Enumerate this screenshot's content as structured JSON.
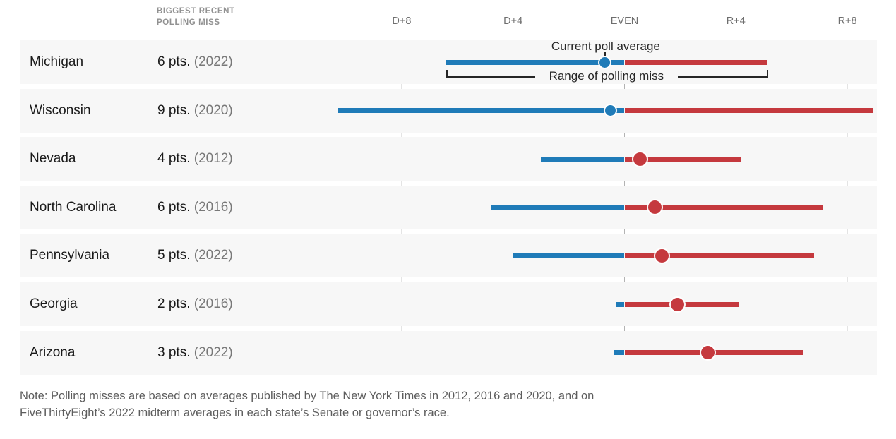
{
  "header": {
    "column_label": "BIGGEST RECENT\nPOLLING MISS"
  },
  "annotations": {
    "current_poll_average": "Current poll average",
    "range_of_polling_miss": "Range of polling miss"
  },
  "note": {
    "lines": [
      "Note: Polling misses are based on averages published by The New York Times in 2012, 2016 and 2020, and on",
      "FiveThirtyEight’s 2022 midterm averages in each state’s Senate or governor’s race."
    ]
  },
  "colors": {
    "dem": "#1f7bb8",
    "rep": "#c5393e",
    "band": "#f7f7f7",
    "gridline": "#e4e4e4",
    "even_line": "#b3b3b3",
    "text_dark": "#1a1a1a",
    "text_gray": "#787878",
    "axis_label": "#6e6e6e",
    "header_label": "#919191",
    "note_text": "#5d5d5d",
    "annotation_text": "#262626"
  },
  "chart_data": {
    "type": "scatter",
    "variant": "dot-with-range",
    "units": "margin in points; negative = Democratic lead, positive = Republican lead",
    "x_axis": {
      "range": [
        -10.5,
        9.5
      ],
      "ticks": [
        {
          "value": -8,
          "label": "D+8"
        },
        {
          "value": -4,
          "label": "D+4"
        },
        {
          "value": 0,
          "label": "EVEN"
        },
        {
          "value": 4,
          "label": "R+4"
        },
        {
          "value": 8,
          "label": "R+8"
        }
      ]
    },
    "legend_position": "annotations on first row",
    "grid": true,
    "rows": [
      {
        "state": "Michigan",
        "miss": "6 pts.",
        "year": "(2022)",
        "poll_average": -0.7,
        "range_lo": -6.4,
        "range_hi": 5.1
      },
      {
        "state": "Wisconsin",
        "miss": "9 pts.",
        "year": "(2020)",
        "poll_average": -0.5,
        "range_lo": -10.3,
        "range_hi": 8.9
      },
      {
        "state": "Nevada",
        "miss": "4 pts.",
        "year": "(2012)",
        "poll_average": 0.55,
        "range_lo": -3.0,
        "range_hi": 4.2
      },
      {
        "state": "North Carolina",
        "miss": "6 pts.",
        "year": "(2016)",
        "poll_average": 1.1,
        "range_lo": -4.8,
        "range_hi": 7.1
      },
      {
        "state": "Pennsylvania",
        "miss": "5 pts.",
        "year": "(2022)",
        "poll_average": 1.35,
        "range_lo": -4.0,
        "range_hi": 6.8
      },
      {
        "state": "Georgia",
        "miss": "2 pts.",
        "year": "(2016)",
        "poll_average": 1.9,
        "range_lo": -0.3,
        "range_hi": 4.1
      },
      {
        "state": "Arizona",
        "miss": "3 pts.",
        "year": "(2022)",
        "poll_average": 3.0,
        "range_lo": -0.4,
        "range_hi": 6.4
      }
    ]
  }
}
